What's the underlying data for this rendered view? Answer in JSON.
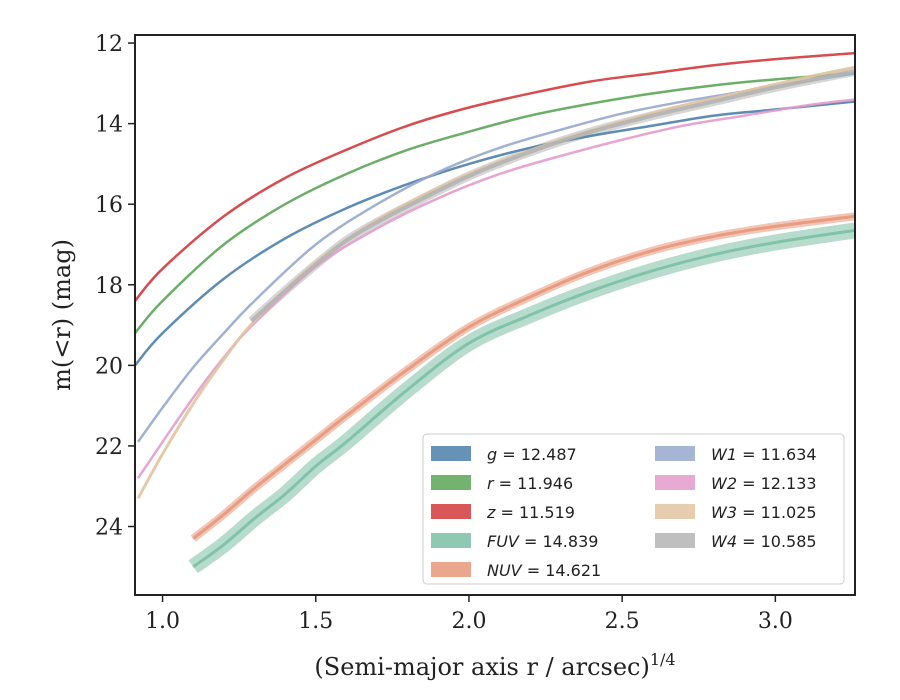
{
  "chart_data": {
    "type": "line",
    "xlabel": "(Semi-major axis r / arcsec)",
    "xlabel_exponent": "1/4",
    "ylabel": "m(<r) (mag)",
    "xlim": [
      0.91,
      3.26
    ],
    "ylim": [
      25.7,
      11.8
    ],
    "y_inverted": true,
    "xticks": [
      1.0,
      1.5,
      2.0,
      2.5,
      3.0
    ],
    "xtick_labels": [
      "1.0",
      "1.5",
      "2.0",
      "2.5",
      "3.0"
    ],
    "yticks": [
      12,
      14,
      16,
      18,
      20,
      22,
      24
    ],
    "ytick_labels": [
      "12",
      "14",
      "16",
      "18",
      "20",
      "22",
      "24"
    ],
    "grid": false,
    "legend_position": "bottom-right",
    "legend_columns": 2,
    "series": [
      {
        "name": "g",
        "value": "12.487",
        "color": "#4c7fab",
        "x": [
          0.91,
          1.0,
          1.2,
          1.4,
          1.6,
          1.8,
          2.0,
          2.2,
          2.4,
          2.6,
          2.8,
          3.0,
          3.26
        ],
        "y": [
          20.0,
          19.2,
          17.85,
          16.85,
          16.1,
          15.5,
          15.0,
          14.6,
          14.3,
          14.05,
          13.8,
          13.65,
          13.45
        ]
      },
      {
        "name": "r",
        "value": "11.946",
        "color": "#5aa556",
        "x": [
          0.91,
          1.0,
          1.2,
          1.4,
          1.6,
          1.8,
          2.0,
          2.2,
          2.4,
          2.6,
          2.8,
          3.0,
          3.26
        ],
        "y": [
          19.2,
          18.4,
          17.0,
          16.0,
          15.25,
          14.65,
          14.2,
          13.8,
          13.5,
          13.25,
          13.05,
          12.9,
          12.75
        ]
      },
      {
        "name": "z",
        "value": "11.519",
        "color": "#d1393c",
        "x": [
          0.91,
          1.0,
          1.2,
          1.4,
          1.6,
          1.8,
          2.0,
          2.2,
          2.4,
          2.6,
          2.8,
          3.0,
          3.26
        ],
        "y": [
          18.4,
          17.6,
          16.3,
          15.35,
          14.65,
          14.05,
          13.6,
          13.25,
          12.95,
          12.75,
          12.55,
          12.4,
          12.25
        ]
      },
      {
        "name": "FUV",
        "value": "14.839",
        "color": "#7bbfa6",
        "x": [
          1.1,
          1.2,
          1.3,
          1.4,
          1.5,
          1.6,
          1.8,
          2.0,
          2.2,
          2.4,
          2.6,
          2.8,
          3.0,
          3.26
        ],
        "y": [
          25.0,
          24.45,
          23.8,
          23.2,
          22.5,
          21.9,
          20.6,
          19.45,
          18.75,
          18.15,
          17.65,
          17.25,
          16.95,
          16.65
        ]
      },
      {
        "name": "NUV",
        "value": "14.621",
        "color": "#e8977a",
        "x": [
          1.1,
          1.2,
          1.3,
          1.4,
          1.5,
          1.6,
          1.8,
          2.0,
          2.2,
          2.4,
          2.6,
          2.8,
          3.0,
          3.26
        ],
        "y": [
          24.3,
          23.7,
          23.05,
          22.45,
          21.85,
          21.25,
          20.1,
          19.05,
          18.3,
          17.65,
          17.15,
          16.8,
          16.55,
          16.3
        ]
      },
      {
        "name": "W1",
        "value": "11.634",
        "color": "#97a8cc",
        "x": [
          0.92,
          1.0,
          1.1,
          1.2,
          1.3,
          1.5,
          1.7,
          1.9,
          2.1,
          2.3,
          2.5,
          2.7,
          2.9,
          3.1,
          3.26
        ],
        "y": [
          21.9,
          21.05,
          20.05,
          19.2,
          18.4,
          17.0,
          16.0,
          15.2,
          14.6,
          14.15,
          13.75,
          13.45,
          13.2,
          12.95,
          12.75
        ]
      },
      {
        "name": "W2",
        "value": "12.133",
        "color": "#e39ccb",
        "x": [
          0.92,
          1.0,
          1.1,
          1.2,
          1.3,
          1.5,
          1.7,
          1.9,
          2.1,
          2.3,
          2.5,
          2.7,
          2.9,
          3.1,
          3.26
        ],
        "y": [
          22.8,
          21.9,
          20.8,
          19.8,
          18.95,
          17.55,
          16.6,
          15.85,
          15.25,
          14.8,
          14.4,
          14.05,
          13.8,
          13.55,
          13.4
        ]
      },
      {
        "name": "W3",
        "value": "11.025",
        "color": "#e1c49f",
        "x": [
          0.92,
          1.0,
          1.1,
          1.2,
          1.3,
          1.5,
          1.7,
          1.9,
          2.1,
          2.3,
          2.5,
          2.7,
          2.9,
          3.1,
          3.26
        ],
        "y": [
          23.3,
          22.2,
          20.95,
          19.85,
          18.9,
          17.45,
          16.4,
          15.6,
          14.95,
          14.4,
          13.95,
          13.55,
          13.2,
          12.85,
          12.6
        ]
      },
      {
        "name": "W4",
        "value": "10.585",
        "color": "#b4b4b4",
        "x": [
          1.29,
          1.4,
          1.5,
          1.6,
          1.7,
          1.8,
          2.0,
          2.2,
          2.4,
          2.6,
          2.8,
          3.0,
          3.26
        ],
        "y": [
          18.9,
          18.15,
          17.5,
          16.9,
          16.45,
          16.05,
          15.3,
          14.7,
          14.2,
          13.8,
          13.45,
          13.1,
          12.7
        ]
      }
    ]
  }
}
